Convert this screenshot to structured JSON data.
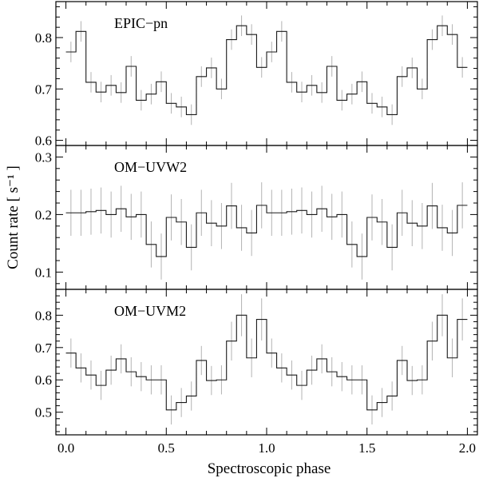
{
  "figure": {
    "y_axis_label": "Count rate  [ s⁻¹ ]",
    "x_axis_label": "Spectroscopic phase"
  },
  "chart_data": [
    {
      "type": "line",
      "title": "EPIC−pn",
      "xlabel": "Spectroscopic phase",
      "ylabel": "Count rate [ s⁻¹ ]",
      "xlim": [
        -0.05,
        2.05
      ],
      "ylim": [
        0.59,
        0.87
      ],
      "x_ticks": [
        0.0,
        0.5,
        1.0,
        1.5,
        2.0
      ],
      "y_ticks": [
        0.6,
        0.7,
        0.8
      ],
      "y_tick_labels": [
        "0.6",
        "0.7",
        "0.8"
      ],
      "bin_width": 0.05,
      "values": [
        0.772,
        0.812,
        0.713,
        0.694,
        0.707,
        0.693,
        0.744,
        0.678,
        0.69,
        0.714,
        0.672,
        0.665,
        0.65,
        0.724,
        0.741,
        0.7,
        0.796,
        0.823,
        0.806,
        0.742,
        0.772,
        0.812,
        0.713,
        0.694,
        0.707,
        0.693,
        0.744,
        0.678,
        0.69,
        0.714,
        0.672,
        0.665,
        0.65,
        0.724,
        0.741,
        0.7,
        0.796,
        0.823,
        0.806,
        0.742
      ],
      "errors": [
        0.02,
        0.02,
        0.02,
        0.02,
        0.02,
        0.02,
        0.02,
        0.02,
        0.02,
        0.02,
        0.02,
        0.02,
        0.02,
        0.02,
        0.02,
        0.02,
        0.02,
        0.02,
        0.02,
        0.02,
        0.02,
        0.02,
        0.02,
        0.02,
        0.02,
        0.02,
        0.02,
        0.02,
        0.02,
        0.02,
        0.02,
        0.02,
        0.02,
        0.02,
        0.02,
        0.02,
        0.02,
        0.02,
        0.02,
        0.02
      ]
    },
    {
      "type": "line",
      "title": "OM−UVW2",
      "xlabel": "Spectroscopic phase",
      "ylabel": "Count rate [ s⁻¹ ]",
      "xlim": [
        -0.05,
        2.05
      ],
      "ylim": [
        0.07,
        0.32
      ],
      "x_ticks": [
        0.0,
        0.5,
        1.0,
        1.5,
        2.0
      ],
      "y_ticks": [
        0.1,
        0.2,
        0.3
      ],
      "y_tick_labels": [
        "0.1",
        "0.2",
        "0.3"
      ],
      "bin_width": 0.05,
      "values": [
        0.203,
        0.203,
        0.205,
        0.207,
        0.2,
        0.21,
        0.196,
        0.2,
        0.148,
        0.127,
        0.195,
        0.187,
        0.143,
        0.203,
        0.185,
        0.18,
        0.215,
        0.177,
        0.168,
        0.216,
        0.203,
        0.203,
        0.205,
        0.207,
        0.2,
        0.21,
        0.196,
        0.2,
        0.148,
        0.127,
        0.195,
        0.187,
        0.143,
        0.203,
        0.185,
        0.18,
        0.215,
        0.177,
        0.168,
        0.216
      ],
      "errors": [
        0.04,
        0.04,
        0.04,
        0.04,
        0.04,
        0.04,
        0.04,
        0.04,
        0.04,
        0.04,
        0.04,
        0.04,
        0.04,
        0.04,
        0.04,
        0.04,
        0.04,
        0.04,
        0.04,
        0.04,
        0.04,
        0.04,
        0.04,
        0.04,
        0.04,
        0.04,
        0.04,
        0.04,
        0.04,
        0.04,
        0.04,
        0.04,
        0.04,
        0.04,
        0.04,
        0.04,
        0.04,
        0.04,
        0.04,
        0.04
      ]
    },
    {
      "type": "line",
      "title": "OM−UVM2",
      "xlabel": "Spectroscopic phase",
      "ylabel": "Count rate [ s⁻¹ ]",
      "xlim": [
        -0.05,
        2.05
      ],
      "ylim": [
        0.43,
        0.88
      ],
      "x_ticks": [
        0.0,
        0.5,
        1.0,
        1.5,
        2.0
      ],
      "y_ticks": [
        0.5,
        0.6,
        0.7,
        0.8
      ],
      "y_tick_labels": [
        "0.5",
        "0.6",
        "0.7",
        "0.8"
      ],
      "bin_width": 0.05,
      "values": [
        0.683,
        0.637,
        0.615,
        0.583,
        0.63,
        0.665,
        0.625,
        0.61,
        0.6,
        0.6,
        0.507,
        0.53,
        0.55,
        0.66,
        0.598,
        0.6,
        0.72,
        0.8,
        0.668,
        0.787,
        0.683,
        0.637,
        0.615,
        0.583,
        0.63,
        0.665,
        0.625,
        0.61,
        0.6,
        0.6,
        0.507,
        0.53,
        0.55,
        0.66,
        0.598,
        0.6,
        0.72,
        0.8,
        0.668,
        0.787
      ],
      "errors": [
        0.045,
        0.045,
        0.045,
        0.045,
        0.045,
        0.045,
        0.045,
        0.045,
        0.045,
        0.045,
        0.045,
        0.045,
        0.045,
        0.045,
        0.045,
        0.045,
        0.06,
        0.065,
        0.06,
        0.065,
        0.045,
        0.045,
        0.045,
        0.045,
        0.045,
        0.045,
        0.045,
        0.045,
        0.045,
        0.045,
        0.045,
        0.045,
        0.045,
        0.045,
        0.045,
        0.045,
        0.06,
        0.065,
        0.06,
        0.065
      ]
    }
  ]
}
